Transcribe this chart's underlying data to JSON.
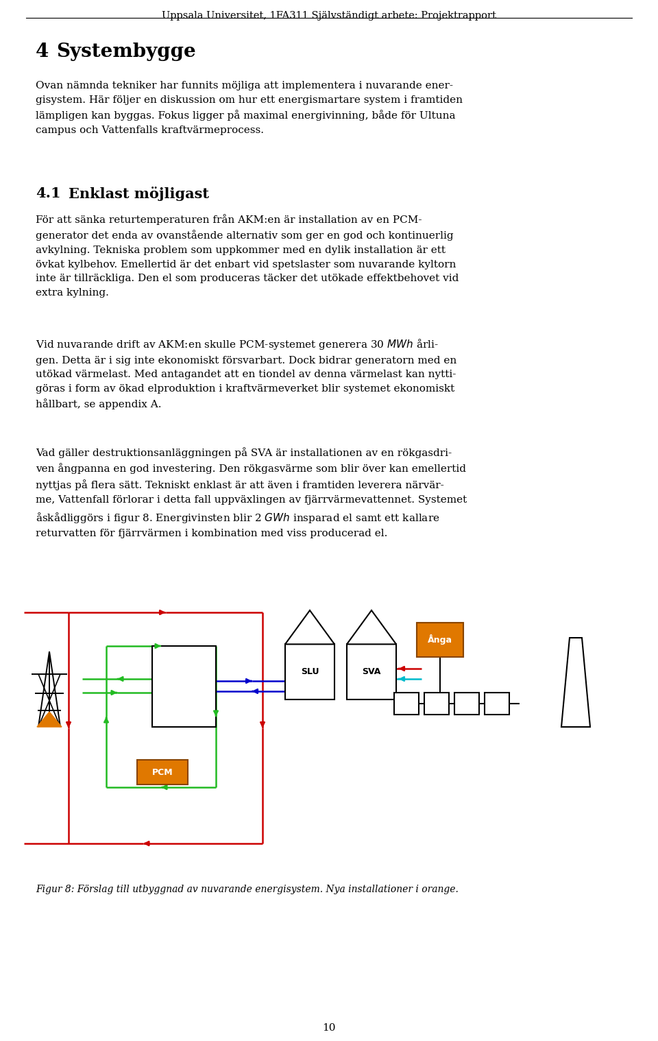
{
  "header": "Uppsala Universitet, 1FA311 Självständigt arbete: Projektrapport",
  "section_num": "4",
  "section_title": "Systembygge",
  "subsection": "4.1",
  "subsection_title": "Enklast möjligast",
  "para_intro": "Ovan nämnda tekniker har funnits möjliga att implementera i nuvarande ener-\ngisystem. Här följer en diskussion om hur ett energismartare system i framtiden\nlämpligen kan byggas. Fokus ligger på maximal energivinning, både för Ultuna\ncampus och Vattenfalls kraftvärmeprocess.",
  "para1": "För att sänka returtemperaturen från AKM:en är installation av en PCM-\ngenerator det enda av ovanstående alternativ som ger en god och kontinuerlig\navkylning. Tekniska problem som uppkommer med en dylik installation är ett\növkat kylbehov. Emellertid är det enbart vid spetslaster som nuvarande kyltorn\ninte är tillräckliga. Den el som produceras täcker det utökade effektbehovet vid\nextra kylning.",
  "para2": "Vid nuvarande drift av AKM:en skulle PCM-systemet generera 30 $MWh$ årli-\ngen. Detta är i sig inte ekonomiskt försvarbart. Dock bidrar generatorn med en\nutökad värmelast. Med antagandet att en tiondel av denna värmelast kan nytti-\ngöras i form av ökad elproduktion i kraftvärmeverket blir systemet ekonomiskt\nhållbart, se appendix A.",
  "para3": "Vad gäller destruktionsanläggningen på SVA är installationen av en rökgasdri-\nven ångpanna en god investering. Den rökgasvärme som blir över kan emellertid\nnyttjas på flera sätt. Tekniskt enklast är att även i framtiden leverera närvär-\nme, Vattenfall förlorar i detta fall uppväxlingen av fjärrvärmevattennet. Systemet\nåskådliggörs i figur 8. Energivinsten blir 2 $GWh$ insparad el samt ett kallare\nreturvatten för fjärrvärmen i kombination med viss producerad el.",
  "fig_caption": "Figur 8: Förslag till utbyggnad av nuvarande energisystem. Nya installationer i orange.",
  "page_num": "10",
  "bg_color": "#ffffff",
  "text_color": "#000000",
  "red": "#cc0000",
  "green": "#22bb22",
  "blue": "#0000cc",
  "cyan": "#00bbcc",
  "orange": "#e07800",
  "lw": 1.8
}
